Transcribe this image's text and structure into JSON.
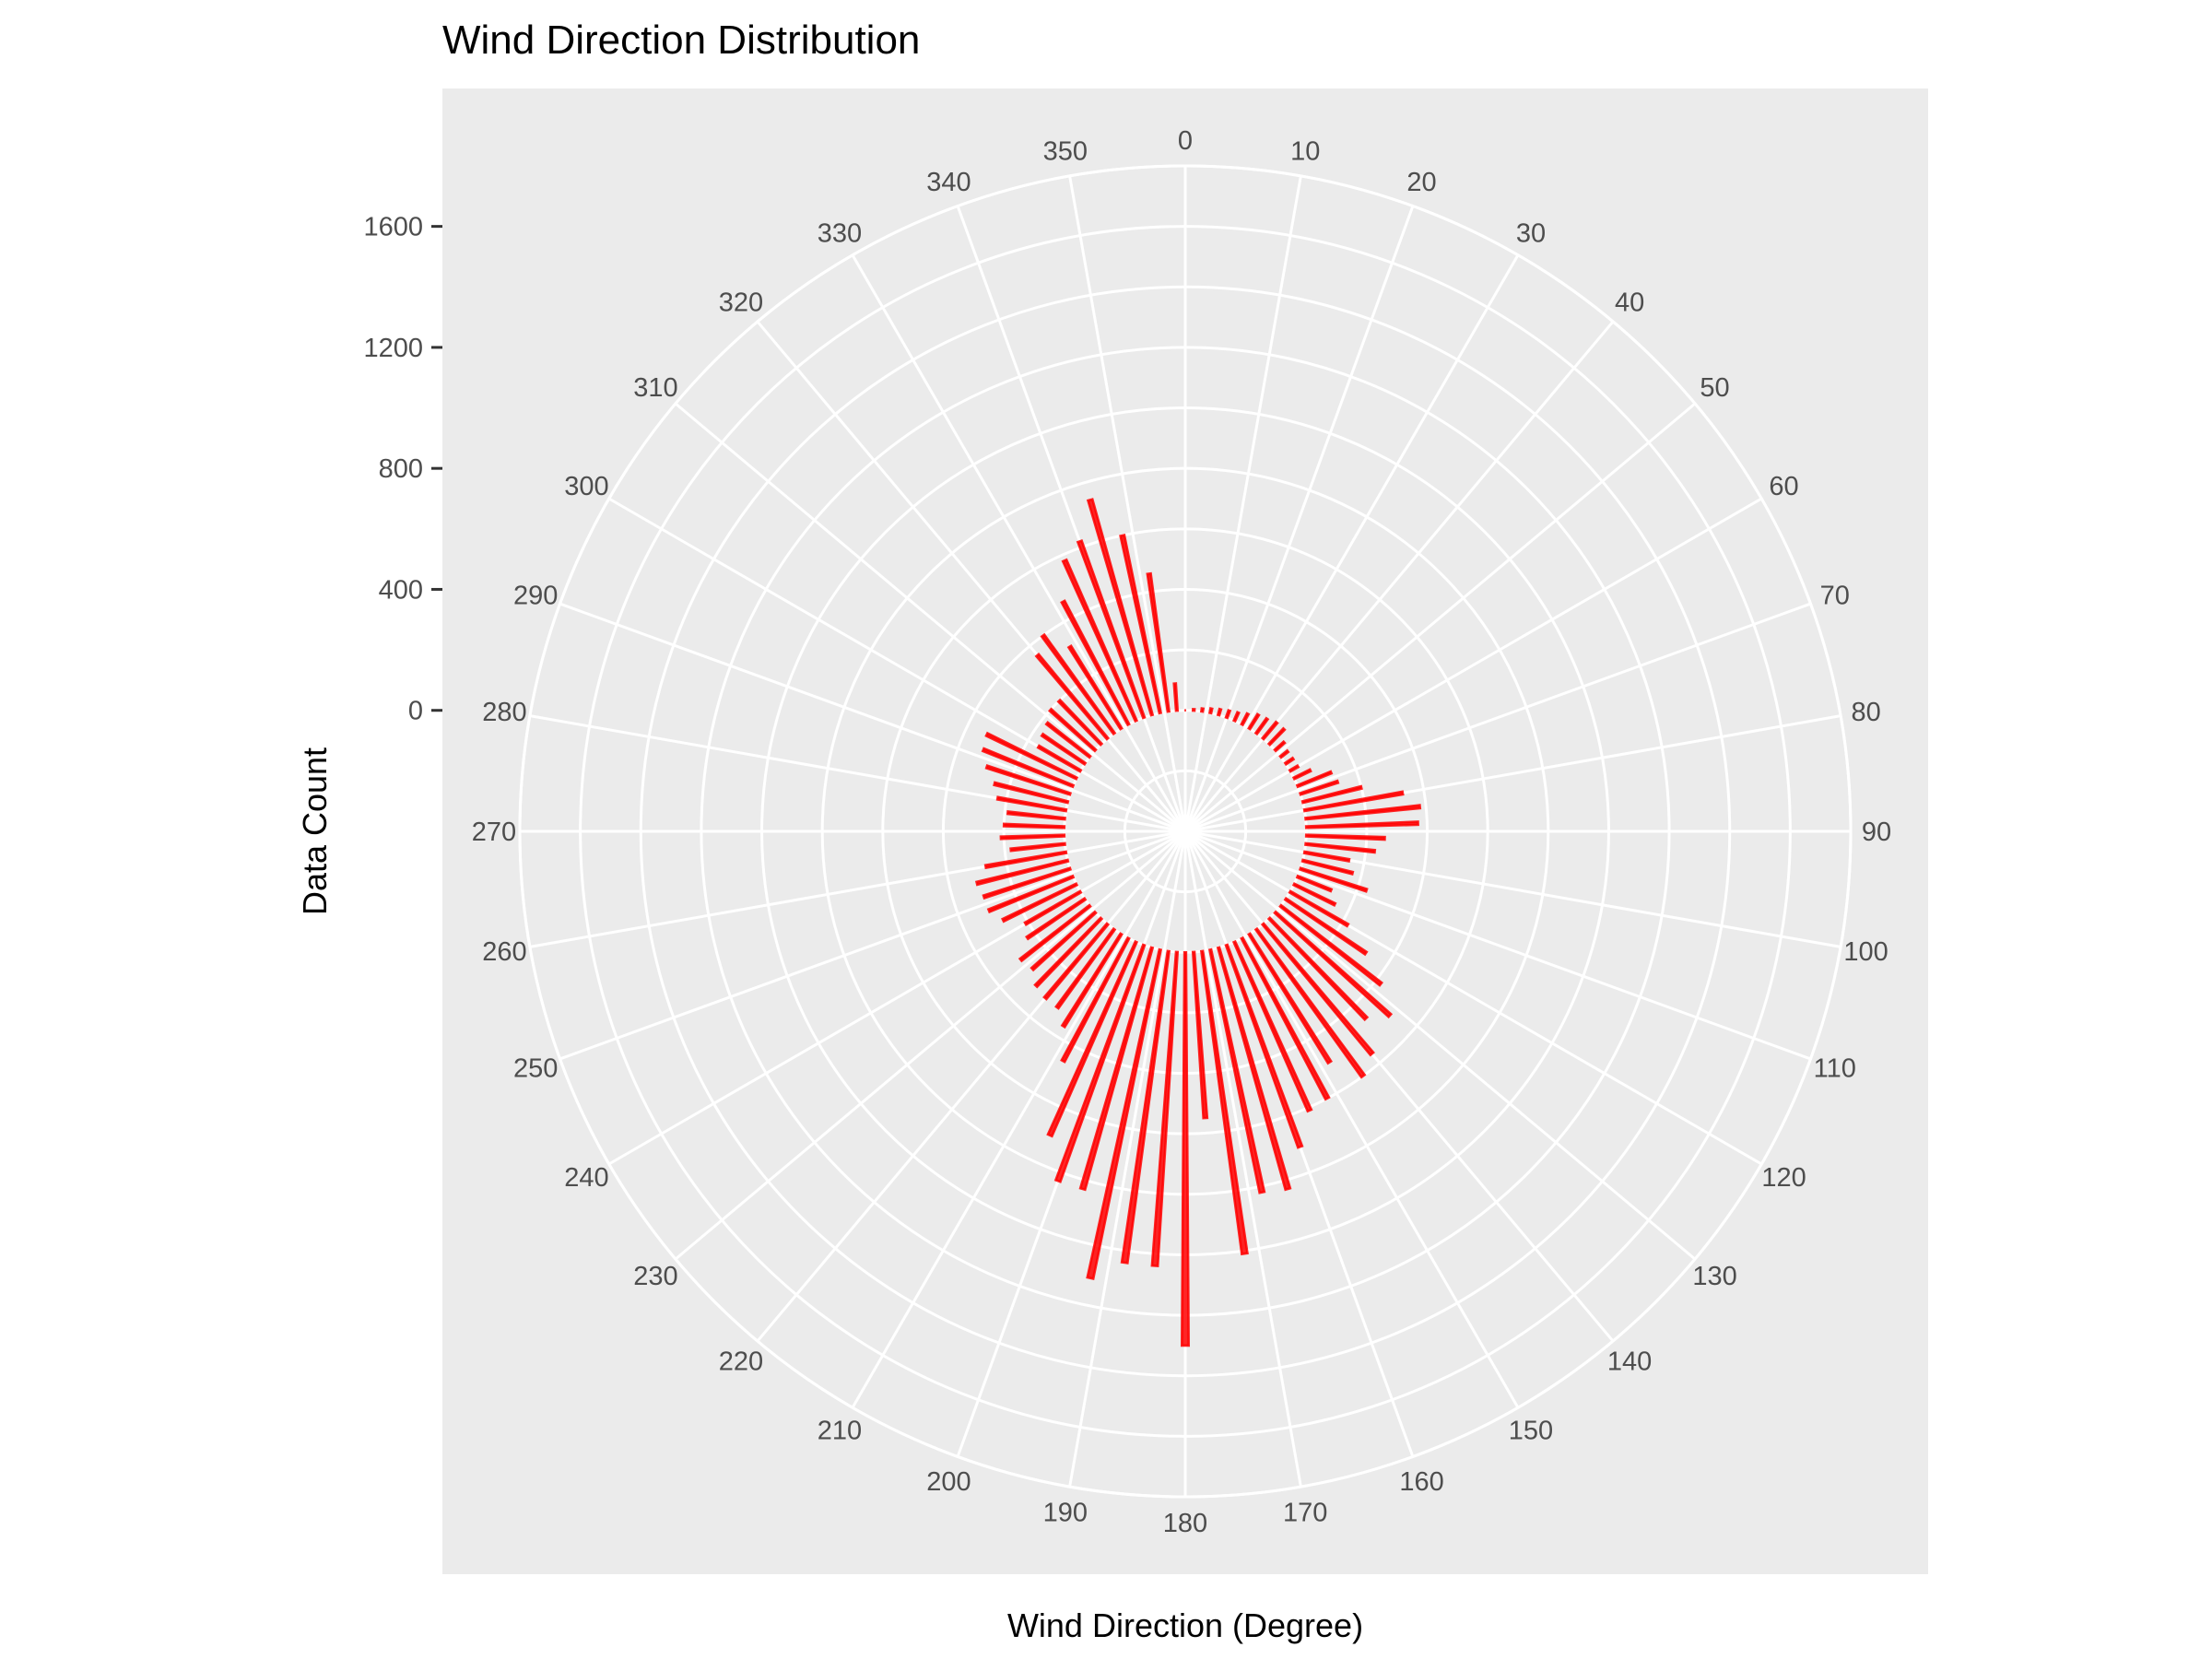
{
  "chart_data": {
    "type": "bar",
    "coord": "polar",
    "title": "Wind Direction Distribution",
    "xlabel": "Wind Direction (Degree)",
    "ylabel": "Data Count",
    "y_ticks": [
      0,
      400,
      800,
      1200,
      1600
    ],
    "ylim": [
      -400,
      1800
    ],
    "x_ticks": [
      0,
      10,
      20,
      30,
      40,
      50,
      60,
      70,
      80,
      90,
      100,
      110,
      120,
      130,
      140,
      150,
      160,
      170,
      180,
      190,
      200,
      210,
      220,
      230,
      240,
      250,
      260,
      270,
      280,
      290,
      300,
      310,
      320,
      330,
      340,
      350
    ],
    "xlim": [
      0,
      360
    ],
    "bar_color": "#ff0000",
    "panel_color": "#ebebeb",
    "grid": true,
    "directions": [
      0,
      4,
      8,
      12,
      16,
      20,
      24,
      28,
      32,
      36,
      40,
      44,
      48,
      52,
      56,
      60,
      64,
      68,
      72,
      76,
      80,
      84,
      88,
      92,
      96,
      100,
      104,
      108,
      112,
      116,
      120,
      124,
      128,
      132,
      136,
      140,
      144,
      148,
      152,
      156,
      160,
      164,
      168,
      172,
      176,
      180,
      184,
      188,
      192,
      196,
      200,
      204,
      208,
      212,
      216,
      220,
      224,
      228,
      232,
      236,
      240,
      244,
      248,
      252,
      256,
      260,
      264,
      268,
      272,
      276,
      280,
      284,
      288,
      292,
      296,
      300,
      304,
      308,
      312,
      316,
      320,
      324,
      328,
      332,
      336,
      340,
      344,
      348,
      352,
      356
    ],
    "counts": [
      0,
      5,
      10,
      15,
      20,
      25,
      30,
      40,
      55,
      60,
      70,
      70,
      40,
      30,
      30,
      30,
      60,
      120,
      130,
      200,
      330,
      380,
      370,
      260,
      230,
      150,
      170,
      230,
      120,
      150,
      220,
      320,
      420,
      510,
      460,
      560,
      600,
      500,
      600,
      610,
      710,
      830,
      820,
      1010,
      550,
      1300,
      1040,
      1040,
      1110,
      830,
      830,
      700,
      460,
      360,
      320,
      320,
      310,
      280,
      290,
      230,
      210,
      270,
      300,
      300,
      310,
      270,
      180,
      210,
      200,
      190,
      230,
      250,
      290,
      320,
      330,
      160,
      170,
      180,
      200,
      200,
      360,
      400,
      320,
      460,
      580,
      620,
      740,
      600,
      460,
      90
    ]
  }
}
